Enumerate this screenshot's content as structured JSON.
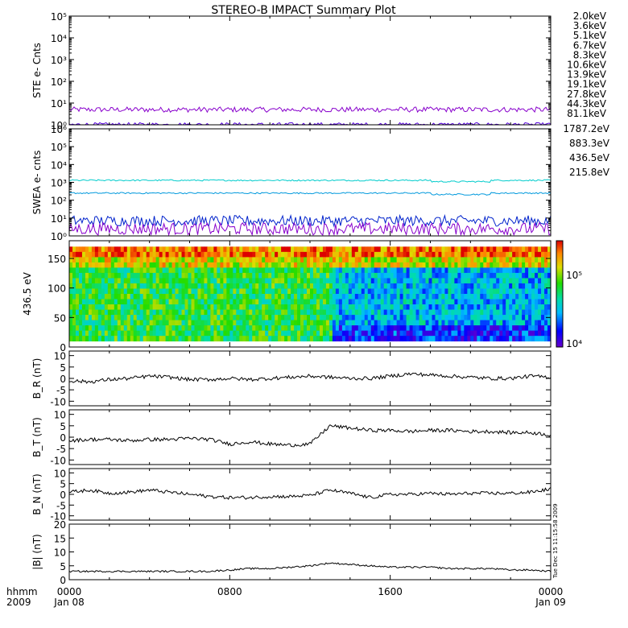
{
  "title": "STEREO-B IMPACT Summary Plot",
  "timestamp": "Tue Dec 15 11:15:58 2009",
  "x_axis": {
    "row_labels": [
      "hhmm",
      "2009"
    ],
    "ticks": [
      {
        "hour": 0,
        "time": "0000",
        "date": "Jan 08"
      },
      {
        "hour": 8,
        "time": "0800",
        "date": ""
      },
      {
        "hour": 16,
        "time": "1600",
        "date": ""
      },
      {
        "hour": 24,
        "time": "0000",
        "date": "Jan 09"
      }
    ],
    "range_hours": [
      0,
      24
    ]
  },
  "legend_ste": [
    {
      "label": "2.0keV",
      "color": "#8800cc"
    },
    {
      "label": "3.6keV",
      "color": "#5500dd"
    },
    {
      "label": "5.1keV",
      "color": "#0033dd"
    },
    {
      "label": "6.7keV",
      "color": "#0099dd"
    },
    {
      "label": "8.3keV",
      "color": "#00cccc"
    },
    {
      "label": "10.6keV",
      "color": "#00cc88"
    },
    {
      "label": "13.9keV",
      "color": "#22cc00"
    },
    {
      "label": "19.1keV",
      "color": "#aadd00"
    },
    {
      "label": "27.8keV",
      "color": "#dddd00"
    },
    {
      "label": "44.3keV",
      "color": "#ff9900"
    },
    {
      "label": "81.1keV",
      "color": "#dd2200"
    }
  ],
  "legend_swea": [
    {
      "label": "1787.2eV",
      "color": "#8800cc"
    },
    {
      "label": "883.3eV",
      "color": "#0022cc"
    },
    {
      "label": "436.5eV",
      "color": "#0099dd"
    },
    {
      "label": "215.8eV",
      "color": "#00cccc"
    }
  ],
  "colorbar": {
    "tick_labels": [
      "10⁵",
      "10⁴"
    ]
  },
  "chart_data": [
    {
      "type": "line",
      "panel": "ste",
      "ylabel": "STE e- Cnts",
      "yscale": "log",
      "ylim": [
        1,
        100000
      ],
      "yticks": [
        "10⁰",
        "10¹",
        "10²",
        "10³",
        "10⁴",
        "10⁵"
      ],
      "series": [
        {
          "name": "2.0keV",
          "level": 5,
          "noise": 0.12
        },
        {
          "name": "3.6keV",
          "level": 1,
          "noise": 0.1
        }
      ]
    },
    {
      "type": "line",
      "panel": "swea",
      "ylabel": "SWEA e- cnts",
      "yscale": "log",
      "ylim": [
        1,
        1000000
      ],
      "yticks": [
        "10⁰",
        "10¹",
        "10²",
        "10³",
        "10⁴",
        "10⁵",
        "10⁶"
      ],
      "series": [
        {
          "name": "215.8eV",
          "level": 1300,
          "noise": 0.04
        },
        {
          "name": "436.5eV",
          "level": 250,
          "noise": 0.04
        },
        {
          "name": "883.3eV",
          "level": 7,
          "noise": 0.3
        },
        {
          "name": "1787.2eV",
          "level": 2.5,
          "noise": 0.35
        }
      ]
    },
    {
      "type": "heatmap",
      "panel": "pitch_angle",
      "ylabel": "436.5 eV",
      "ylim": [
        0,
        180
      ],
      "yticks": [
        0,
        50,
        100,
        150
      ],
      "zscale": "log",
      "zlim": [
        10000,
        250000
      ],
      "description_values": {
        "early_mid": 60000,
        "late_mid": 28000,
        "high_pitch": 180000
      }
    },
    {
      "type": "line",
      "panel": "br",
      "ylabel": "B_R (nT)",
      "ylim": [
        -12,
        12
      ],
      "yticks": [
        -10,
        -5,
        0,
        5,
        10
      ],
      "x": [
        0,
        1,
        2,
        3,
        4,
        5,
        6,
        7,
        8,
        9,
        10,
        11,
        12,
        13,
        14,
        15,
        16,
        17,
        18,
        19,
        20,
        21,
        22,
        23,
        24
      ],
      "values": [
        -1,
        -1.5,
        -0.5,
        0,
        1,
        0.5,
        -0.5,
        -0.5,
        0,
        -0.5,
        0,
        0.5,
        1,
        0.5,
        0,
        0,
        1,
        2,
        1.5,
        1,
        0.5,
        0,
        0,
        1,
        0.5
      ]
    },
    {
      "type": "line",
      "panel": "bt",
      "ylabel": "B_T (nT)",
      "ylim": [
        -12,
        12
      ],
      "yticks": [
        -10,
        -5,
        0,
        5,
        10
      ],
      "x": [
        0,
        1,
        2,
        3,
        4,
        5,
        6,
        7,
        8,
        9,
        10,
        11,
        12,
        13,
        14,
        15,
        16,
        17,
        18,
        19,
        20,
        21,
        22,
        23,
        24
      ],
      "values": [
        -1.5,
        -1,
        -1,
        -1.5,
        -1,
        -1,
        -0.5,
        -1,
        -3,
        -2,
        -3,
        -3.5,
        -3,
        5,
        4,
        3,
        3,
        2.5,
        3,
        3,
        2.5,
        2.5,
        2,
        2,
        1
      ]
    },
    {
      "type": "line",
      "panel": "bn",
      "ylabel": "B_N (nT)",
      "ylim": [
        -12,
        12
      ],
      "yticks": [
        -10,
        -5,
        0,
        5,
        10
      ],
      "x": [
        0,
        1,
        2,
        3,
        4,
        5,
        6,
        7,
        8,
        9,
        10,
        11,
        12,
        13,
        14,
        15,
        16,
        17,
        18,
        19,
        20,
        21,
        22,
        23,
        24
      ],
      "values": [
        1,
        2,
        0.5,
        1,
        2,
        1,
        0,
        -1,
        -1.5,
        -1.5,
        -1,
        -1,
        -0.5,
        2,
        0.5,
        -1.5,
        0,
        0,
        0.5,
        0,
        0.5,
        0.5,
        0.5,
        1,
        2.5
      ]
    },
    {
      "type": "line",
      "panel": "bmag",
      "ylabel": "|B| (nT)",
      "ylim": [
        0,
        20
      ],
      "yticks": [
        0,
        5,
        10,
        15,
        20
      ],
      "x": [
        0,
        1,
        2,
        3,
        4,
        5,
        6,
        7,
        8,
        9,
        10,
        11,
        12,
        13,
        14,
        15,
        16,
        17,
        18,
        19,
        20,
        21,
        22,
        23,
        24
      ],
      "values": [
        3,
        3,
        3,
        3,
        3,
        3,
        3,
        3,
        3.5,
        4,
        4,
        4.5,
        5,
        6,
        5.5,
        5,
        4.5,
        4.5,
        4.5,
        4,
        4,
        4,
        3.5,
        3.5,
        3
      ]
    }
  ]
}
